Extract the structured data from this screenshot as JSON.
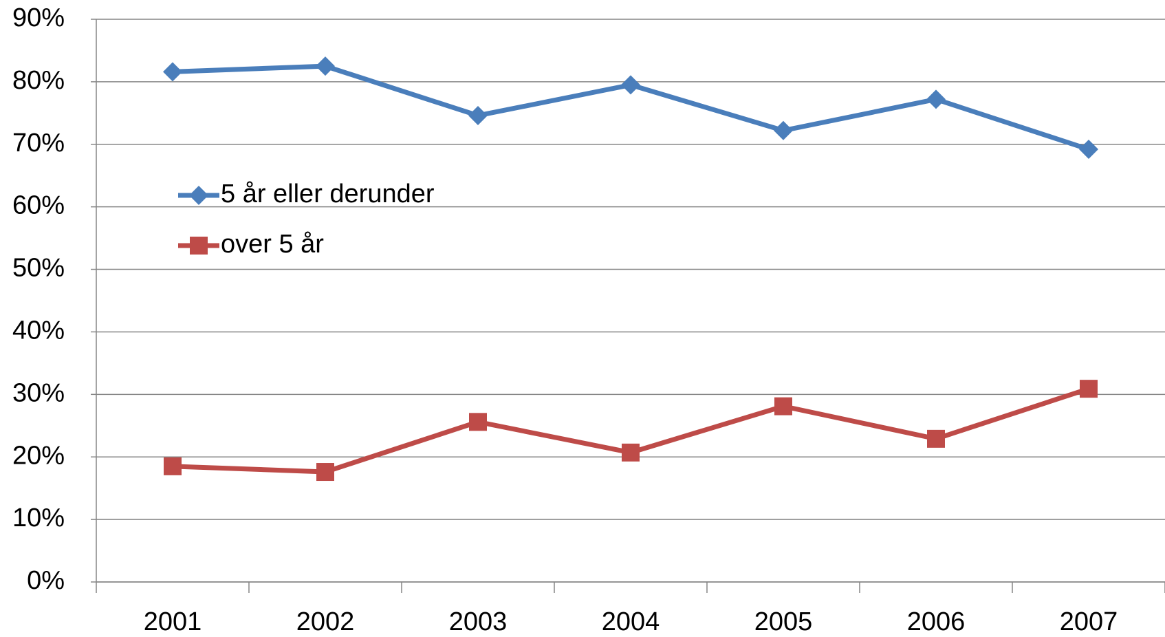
{
  "chart_data": {
    "type": "line",
    "categories": [
      "2001",
      "2002",
      "2003",
      "2004",
      "2005",
      "2006",
      "2007"
    ],
    "series": [
      {
        "name": "5 år eller derunder",
        "color": "#4a7ebb",
        "marker": "diamond",
        "values": [
          81.6,
          82.5,
          74.6,
          79.5,
          72.2,
          77.2,
          69.2
        ]
      },
      {
        "name": "over 5 år",
        "color": "#be4b48",
        "marker": "square",
        "values": [
          18.5,
          17.6,
          25.6,
          20.7,
          28.1,
          22.9,
          30.9
        ]
      }
    ],
    "ylim": [
      0,
      90
    ],
    "yticks": [
      {
        "value": 0,
        "label": "0%"
      },
      {
        "value": 10,
        "label": "10%"
      },
      {
        "value": 20,
        "label": "20%"
      },
      {
        "value": 30,
        "label": "30%"
      },
      {
        "value": 40,
        "label": "40%"
      },
      {
        "value": 50,
        "label": "50%"
      },
      {
        "value": 60,
        "label": "60%"
      },
      {
        "value": 70,
        "label": "70%"
      },
      {
        "value": 80,
        "label": "80%"
      },
      {
        "value": 90,
        "label": "90%"
      }
    ],
    "grid": true,
    "legend": "upper left"
  }
}
